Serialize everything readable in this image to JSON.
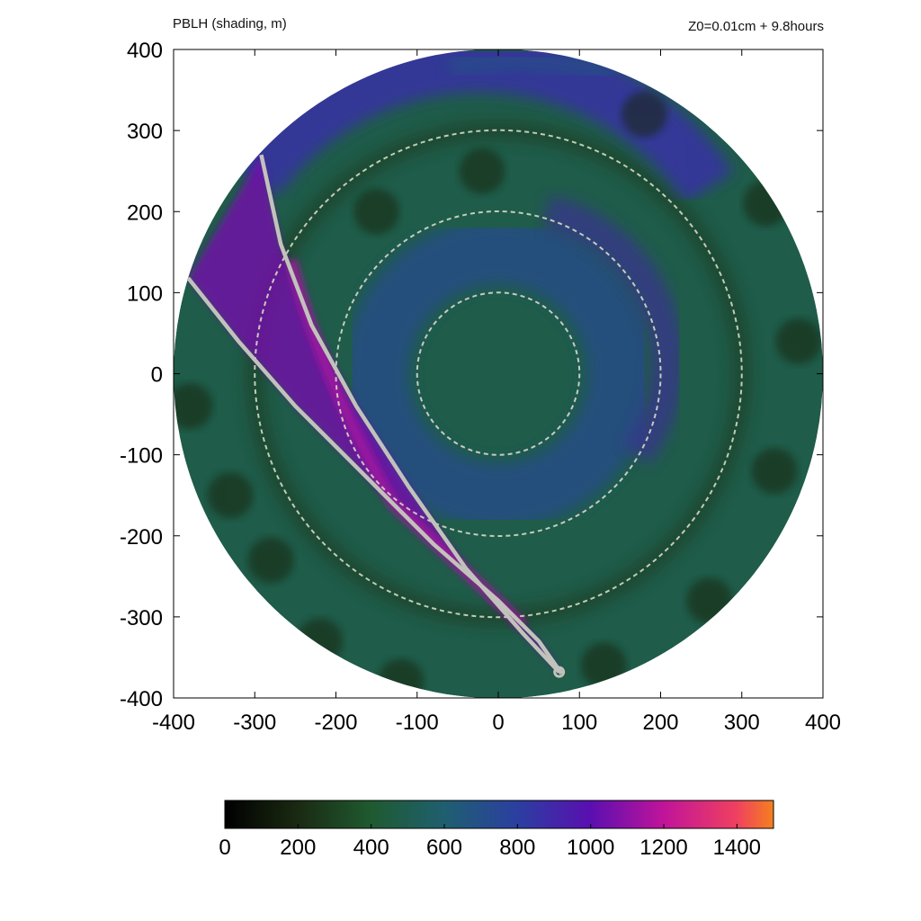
{
  "chart_data": {
    "type": "heatmap",
    "title": "PBLH (shading, m)",
    "subtitle": "Z0=0.01cm  + 9.8hours",
    "xlabel": "",
    "ylabel": "",
    "xlim": [
      -400,
      400
    ],
    "ylim": [
      -400,
      400
    ],
    "x_ticks": [
      -400,
      -300,
      -200,
      -100,
      0,
      100,
      200,
      300,
      400
    ],
    "y_ticks": [
      -400,
      -300,
      -200,
      -100,
      0,
      100,
      200,
      300,
      400
    ],
    "domain_radius": 400,
    "range_rings": [
      100,
      200,
      300
    ],
    "colorbar": {
      "min": 0,
      "max": 1500,
      "ticks": [
        0,
        200,
        400,
        600,
        800,
        1000,
        1200,
        1400
      ],
      "stops": [
        {
          "value": 0,
          "color": "#000000"
        },
        {
          "value": 200,
          "color": "#1a2a12"
        },
        {
          "value": 400,
          "color": "#1f5a30"
        },
        {
          "value": 600,
          "color": "#1f5f70"
        },
        {
          "value": 800,
          "color": "#2b3fa0"
        },
        {
          "value": 1000,
          "color": "#5a0fb0"
        },
        {
          "value": 1200,
          "color": "#c0149a"
        },
        {
          "value": 1400,
          "color": "#f04060"
        },
        {
          "value": 1500,
          "color": "#f5801e"
        }
      ]
    },
    "field_features": [
      {
        "name": "background",
        "pblh": 480
      },
      {
        "name": "inner-band-center",
        "radius": 150,
        "pblh": 720
      },
      {
        "name": "outer-band-north",
        "radius": 340,
        "pblh": 860
      },
      {
        "name": "dark-ring",
        "radius": 300,
        "pblh": 260
      },
      {
        "name": "rainband-streak",
        "pblh": 1150
      }
    ],
    "tracks": [
      {
        "points": [
          [
            -292,
            270
          ],
          [
            -268,
            160
          ],
          [
            -230,
            60
          ],
          [
            -175,
            -40
          ],
          [
            -110,
            -140
          ],
          [
            -40,
            -240
          ],
          [
            30,
            -320
          ],
          [
            75,
            -368
          ]
        ]
      },
      {
        "points": [
          [
            -382,
            118
          ],
          [
            -320,
            40
          ],
          [
            -250,
            -40
          ],
          [
            -160,
            -130
          ],
          [
            -80,
            -210
          ],
          [
            0,
            -280
          ],
          [
            50,
            -330
          ],
          [
            78,
            -370
          ]
        ]
      }
    ]
  }
}
